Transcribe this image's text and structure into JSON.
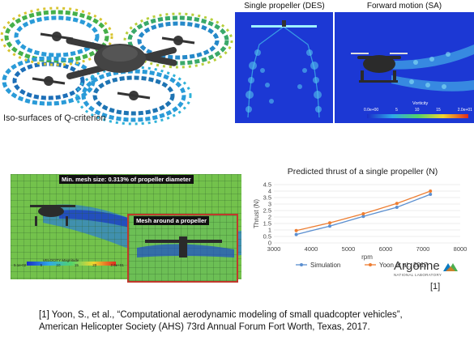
{
  "qcriterion": {
    "caption": "Iso-surfaces of Q-criterion"
  },
  "panels": {
    "left_title": "Single propeller (DES)",
    "right_title": "Forward motion (SA)",
    "colorbar_title": "Vorticity",
    "colorbar_ticks": [
      "0.0e+00",
      "5",
      "10",
      "15",
      "2.0e+01"
    ]
  },
  "mesh": {
    "label_main": "Min. mesh size: 0.313% of propeller diameter",
    "label_inset": "Mesh around a propeller",
    "colorbar_title": "VELOCITY Magnitude",
    "colorbar_ticks": [
      "5.1e-02",
      "5",
      "10",
      "15",
      "20",
      "2.6e+01"
    ]
  },
  "logo": {
    "name": "Argonne",
    "sub": "NATIONAL LABORATORY",
    "ref": "[1]"
  },
  "reference": {
    "line1": "[1] Yoon, S., et al., “Computational aerodynamic modeling of small quadcopter vehicles”,",
    "line2": "American Helicopter Society (AHS) 73rd Annual Forum Fort Worth, Texas, 2017."
  },
  "chart_data": {
    "type": "line",
    "title": "Predicted thrust of a single propeller (N)",
    "xlabel": "rpm",
    "ylabel": "Thrust (N)",
    "xlim": [
      3000,
      8000
    ],
    "ylim": [
      0,
      4.5
    ],
    "xticks": [
      3000,
      4000,
      5000,
      6000,
      7000,
      8000
    ],
    "yticks": [
      0,
      0.5,
      1,
      1.5,
      2,
      2.5,
      3,
      3.5,
      4,
      4.5
    ],
    "grid": true,
    "legend_position": "bottom",
    "series": [
      {
        "name": "Simulation",
        "color": "#5b8fd0",
        "x": [
          3600,
          4500,
          5400,
          6300,
          7200
        ],
        "y": [
          0.65,
          1.3,
          2.05,
          2.75,
          3.75
        ]
      },
      {
        "name": "Yoon et al., 2017",
        "color": "#ed7d31",
        "x": [
          3600,
          4500,
          5400,
          6300,
          7200
        ],
        "y": [
          0.95,
          1.55,
          2.25,
          3.05,
          4.0
        ]
      }
    ]
  }
}
